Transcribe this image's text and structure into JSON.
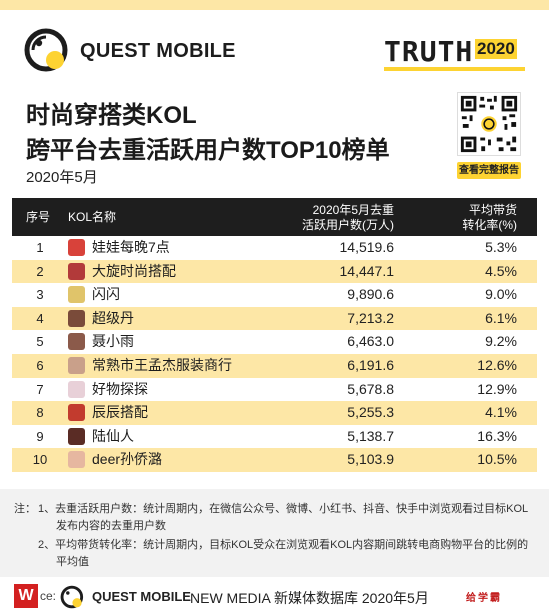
{
  "header": {
    "brand": "QUEST MOBILE",
    "truth_word": "TRUTH",
    "truth_year": "2020"
  },
  "title_line1": "时尚穿搭类KOL",
  "title_line2": "跨平台去重活跃用户数TOP10榜单",
  "subtitle": "2020年5月",
  "qr_button": "查看完整报告",
  "chart_data": {
    "type": "table",
    "columns": {
      "rank": "序号",
      "name": "KOL名称",
      "users_line1": "2020年5月去重",
      "users_line2": "活跃用户数(万人)",
      "rate_line1": "平均带货",
      "rate_line2": "转化率(%)"
    },
    "rows": [
      {
        "rank": "1",
        "name": "娃娃每晚7点",
        "users": "14,519.6",
        "rate": "5.3%"
      },
      {
        "rank": "2",
        "name": "大旋时尚搭配",
        "users": "14,447.1",
        "rate": "4.5%"
      },
      {
        "rank": "3",
        "name": "闪闪",
        "users": "9,890.6",
        "rate": "9.0%"
      },
      {
        "rank": "4",
        "name": "超级丹",
        "users": "7,213.2",
        "rate": "6.1%"
      },
      {
        "rank": "5",
        "name": "聂小雨",
        "users": "6,463.0",
        "rate": "9.2%"
      },
      {
        "rank": "6",
        "name": "常熟市王孟杰服装商行",
        "users": "6,191.6",
        "rate": "12.6%"
      },
      {
        "rank": "7",
        "name": "好物探探",
        "users": "5,678.8",
        "rate": "12.9%"
      },
      {
        "rank": "8",
        "name": "辰辰搭配",
        "users": "5,255.3",
        "rate": "4.1%"
      },
      {
        "rank": "9",
        "name": "陆仙人",
        "users": "5,138.7",
        "rate": "16.3%"
      },
      {
        "rank": "10",
        "name": "deer孙侨潞",
        "users": "5,103.9",
        "rate": "10.5%"
      }
    ]
  },
  "notes": {
    "prefix": "注：",
    "n1_line1": "1、去重活跃用户数：统计周期内，在微信公众号、微博、小红书、抖音、快手中浏览观看过目标KOL",
    "n1_line2": "发布内容的去重用户数",
    "n2_line1": "2、平均带货转化率：统计周期内，目标KOL受众在浏览观看KOL内容期间跳转电商购物平台的比例的",
    "n2_line2": "平均值"
  },
  "footer": {
    "wm_letter": "W",
    "source_prefix": "ce:",
    "brand": "QUEST MOBILE",
    "source": "NEW MEDIA 新媒体数据库 2020年5月",
    "red_mark": "给学霸"
  },
  "colors": {
    "accent_yellow": "#fdd332",
    "row_stripe": "#fde7a6",
    "header_dark": "#1e1e1e"
  }
}
